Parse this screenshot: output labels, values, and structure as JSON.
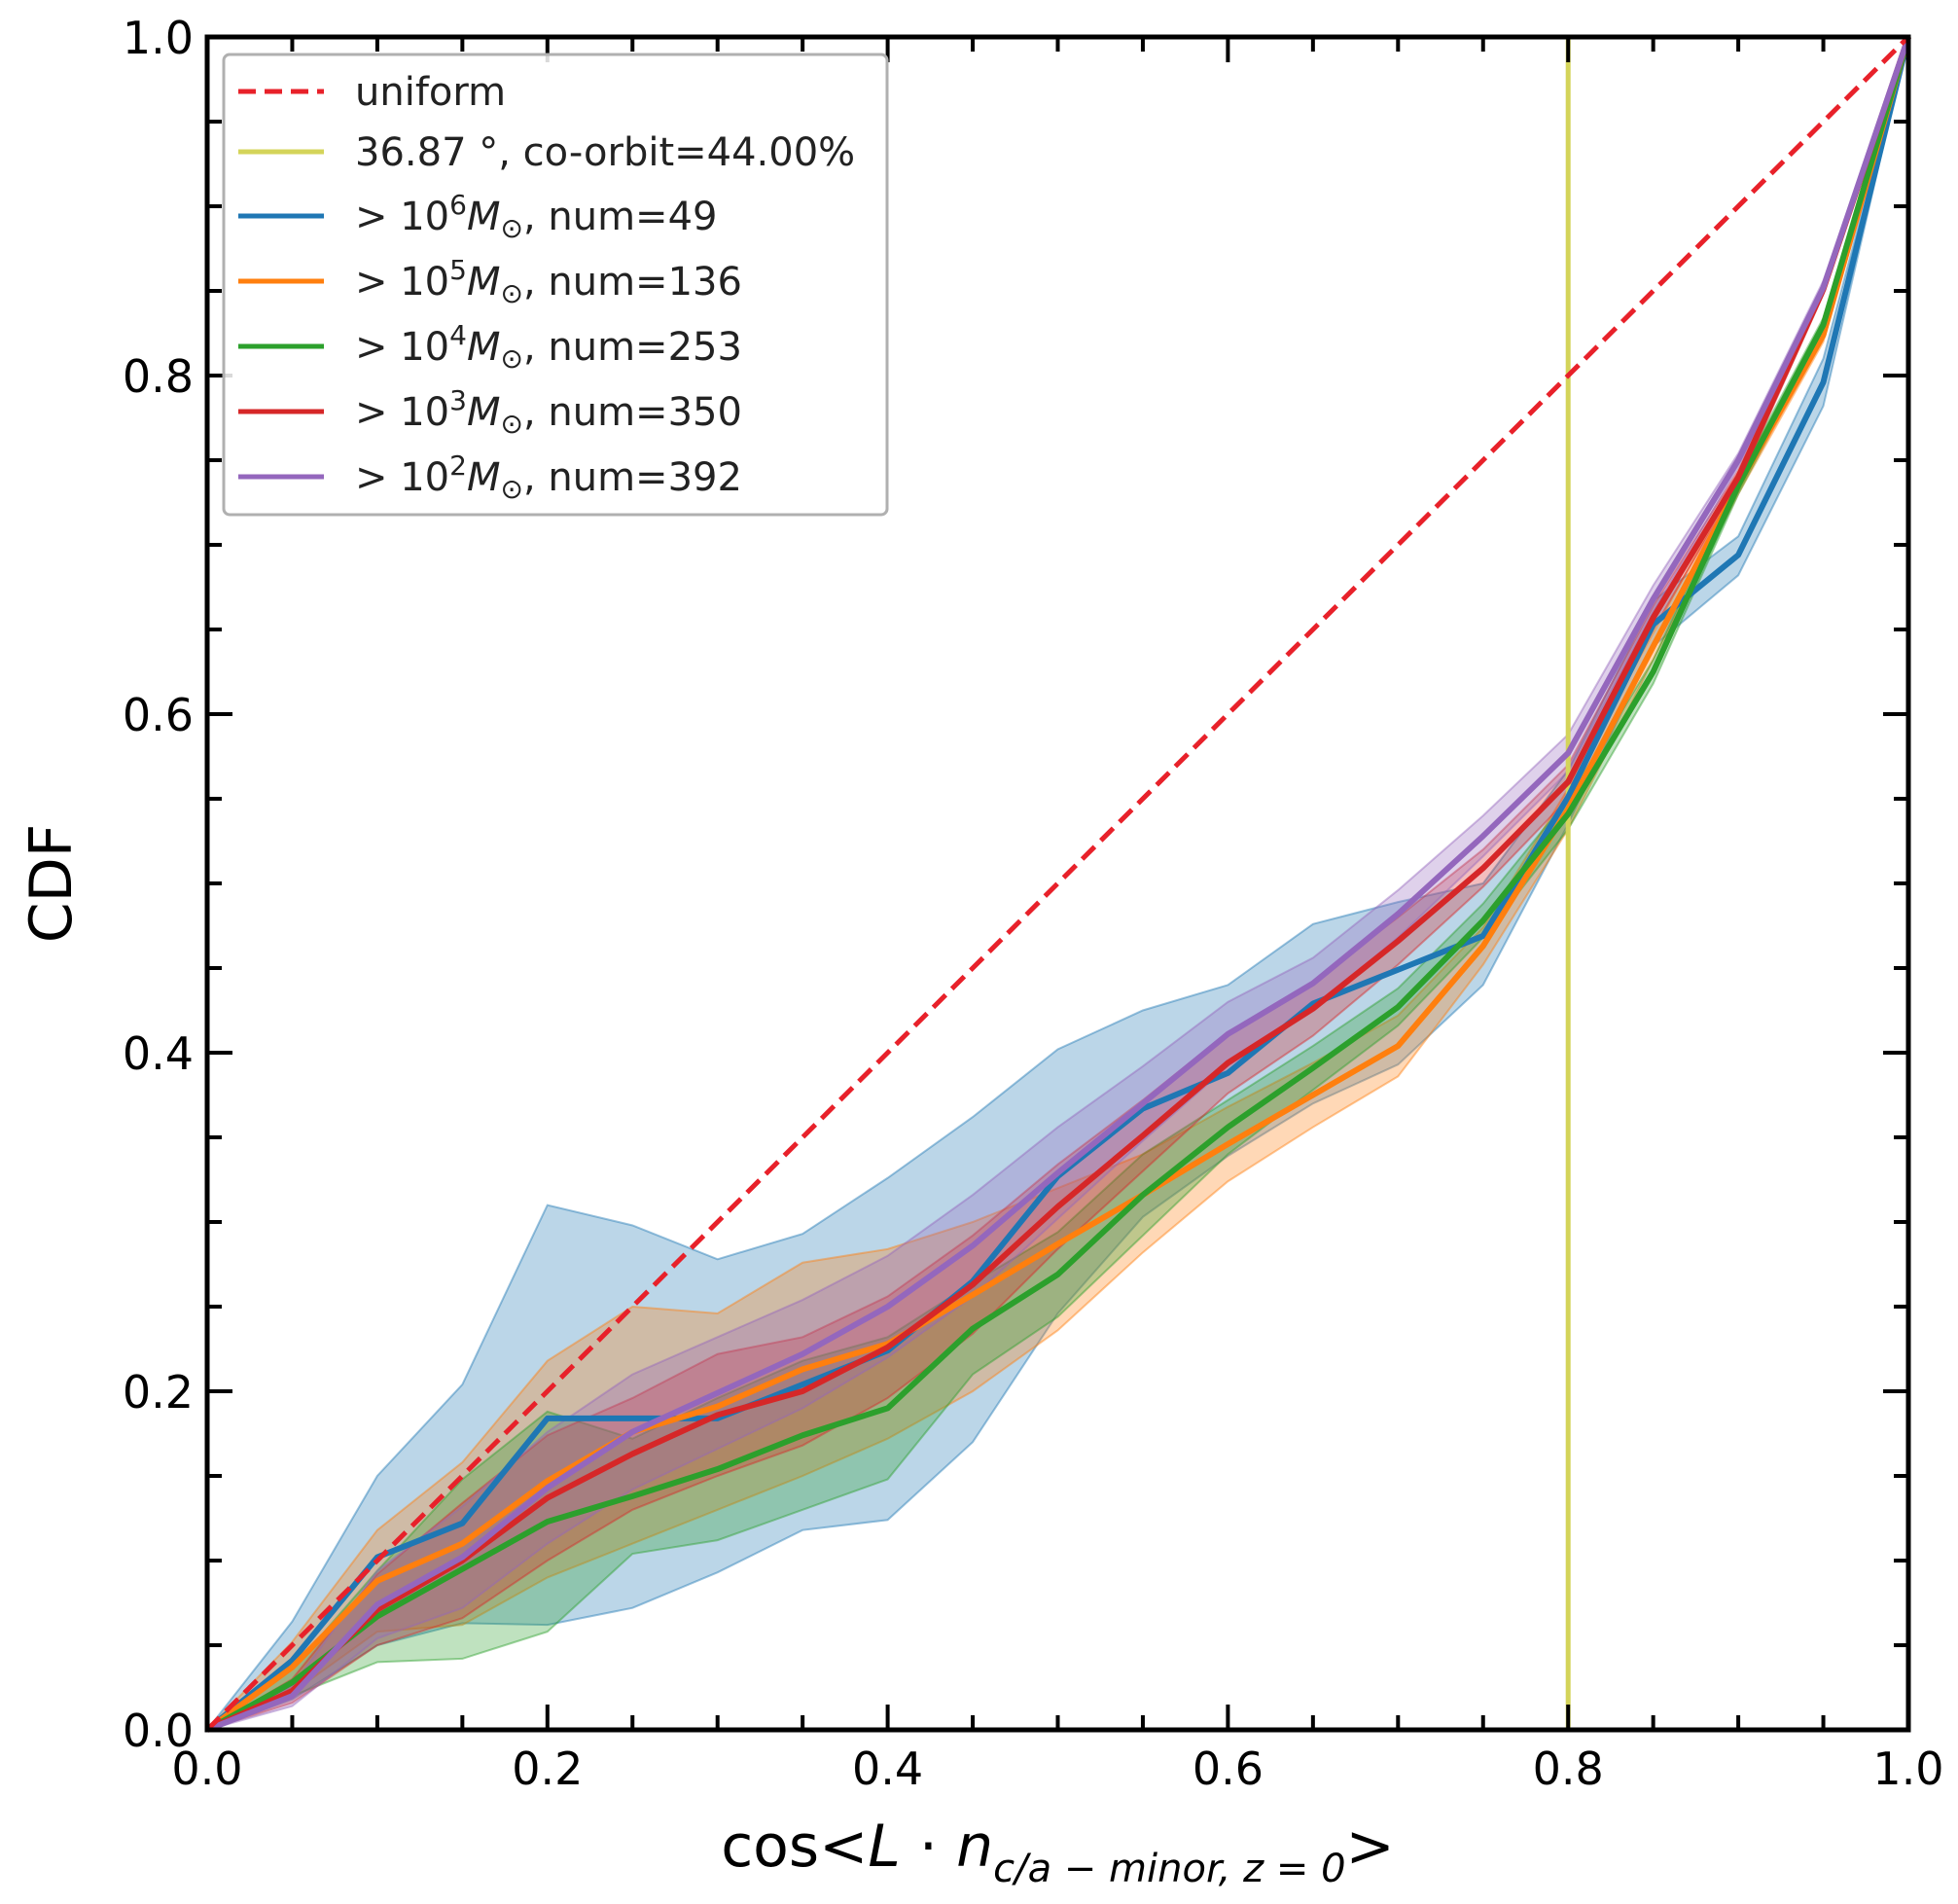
{
  "chart_data": {
    "type": "line",
    "xlabel": "cos<L · n_{c/a − minor, z = 0}>",
    "ylabel": "CDF",
    "xlim": [
      0.0,
      1.0
    ],
    "ylim": [
      0.0,
      1.0
    ],
    "xticks": [
      "0.0",
      "0.2",
      "0.4",
      "0.6",
      "0.8",
      "1.0"
    ],
    "yticks": [
      "0.0",
      "0.2",
      "0.4",
      "0.6",
      "0.8",
      "1.0"
    ],
    "grid": false,
    "legend_position": "top-left",
    "vline": {
      "x": 0.8,
      "color": "#d4d45a",
      "label": "36.87 °, co-orbit=44.00%"
    },
    "reference": {
      "name": "uniform",
      "color": "#e8212a",
      "style": "dashed",
      "x": [
        0.0,
        1.0
      ],
      "y": [
        0.0,
        1.0
      ]
    },
    "x": [
      0.0,
      0.05,
      0.1,
      0.15,
      0.2,
      0.25,
      0.3,
      0.35,
      0.4,
      0.45,
      0.5,
      0.55,
      0.6,
      0.65,
      0.7,
      0.75,
      0.8,
      0.85,
      0.9,
      0.95,
      1.0
    ],
    "series": [
      {
        "name": "> 10^6 M⊙, num=49",
        "exp": "6",
        "tail": ", num=49",
        "color": "#1f77b4",
        "values": [
          0.0,
          0.041,
          0.102,
          0.122,
          0.184,
          0.184,
          0.184,
          0.204,
          0.224,
          0.265,
          0.327,
          0.367,
          0.388,
          0.429,
          0.449,
          0.469,
          0.551,
          0.653,
          0.694,
          0.796,
          1.0
        ],
        "lower": [
          0.0,
          0.018,
          0.05,
          0.063,
          0.062,
          0.072,
          0.093,
          0.118,
          0.124,
          0.17,
          0.246,
          0.303,
          0.339,
          0.37,
          0.393,
          0.44,
          0.535,
          0.64,
          0.682,
          0.782,
          1.0
        ],
        "upper": [
          0.0,
          0.064,
          0.15,
          0.204,
          0.31,
          0.298,
          0.278,
          0.293,
          0.326,
          0.362,
          0.402,
          0.425,
          0.44,
          0.476,
          0.489,
          0.5,
          0.567,
          0.667,
          0.705,
          0.81,
          1.0
        ]
      },
      {
        "name": "> 10^5 M⊙, num=136",
        "exp": "5",
        "tail": ", num=136",
        "color": "#ff7f0e",
        "values": [
          0.0,
          0.037,
          0.088,
          0.11,
          0.147,
          0.176,
          0.191,
          0.213,
          0.228,
          0.257,
          0.287,
          0.316,
          0.346,
          0.375,
          0.404,
          0.463,
          0.544,
          0.64,
          0.735,
          0.824,
          1.0
        ],
        "lower": [
          0.0,
          0.022,
          0.058,
          0.062,
          0.09,
          0.11,
          0.13,
          0.15,
          0.172,
          0.2,
          0.236,
          0.282,
          0.324,
          0.356,
          0.386,
          0.452,
          0.532,
          0.632,
          0.73,
          0.82,
          1.0
        ],
        "upper": [
          0.0,
          0.052,
          0.118,
          0.158,
          0.218,
          0.25,
          0.246,
          0.276,
          0.284,
          0.3,
          0.32,
          0.34,
          0.368,
          0.394,
          0.422,
          0.474,
          0.556,
          0.648,
          0.74,
          0.828,
          1.0
        ]
      },
      {
        "name": "> 10^4 M⊙, num=253",
        "exp": "4",
        "tail": ", num=253",
        "color": "#2ca02c",
        "values": [
          0.0,
          0.028,
          0.067,
          0.095,
          0.123,
          0.138,
          0.154,
          0.174,
          0.19,
          0.237,
          0.269,
          0.316,
          0.356,
          0.391,
          0.427,
          0.478,
          0.541,
          0.625,
          0.735,
          0.83,
          1.0
        ],
        "lower": [
          0.0,
          0.02,
          0.04,
          0.042,
          0.058,
          0.104,
          0.112,
          0.13,
          0.148,
          0.21,
          0.244,
          0.292,
          0.34,
          0.378,
          0.416,
          0.468,
          0.532,
          0.618,
          0.73,
          0.826,
          1.0
        ],
        "upper": [
          0.0,
          0.036,
          0.094,
          0.148,
          0.188,
          0.172,
          0.196,
          0.218,
          0.232,
          0.264,
          0.294,
          0.34,
          0.372,
          0.404,
          0.438,
          0.488,
          0.55,
          0.632,
          0.74,
          0.834,
          1.0
        ]
      },
      {
        "name": "> 10^3 M⊙, num=350",
        "exp": "3",
        "tail": ", num=350",
        "color": "#d62728",
        "values": [
          0.0,
          0.023,
          0.071,
          0.1,
          0.137,
          0.163,
          0.186,
          0.2,
          0.226,
          0.263,
          0.309,
          0.351,
          0.394,
          0.426,
          0.466,
          0.509,
          0.56,
          0.657,
          0.74,
          0.851,
          1.0
        ],
        "lower": [
          0.0,
          0.016,
          0.05,
          0.066,
          0.1,
          0.13,
          0.15,
          0.168,
          0.196,
          0.234,
          0.284,
          0.33,
          0.376,
          0.41,
          0.452,
          0.498,
          0.55,
          0.65,
          0.736,
          0.848,
          1.0
        ],
        "upper": [
          0.0,
          0.03,
          0.092,
          0.134,
          0.174,
          0.196,
          0.222,
          0.232,
          0.256,
          0.292,
          0.334,
          0.372,
          0.412,
          0.442,
          0.48,
          0.52,
          0.57,
          0.664,
          0.744,
          0.854,
          1.0
        ]
      },
      {
        "name": "> 10^2 M⊙, num=392",
        "exp": "2",
        "tail": ", num=392",
        "color": "#9467bd",
        "values": [
          0.0,
          0.02,
          0.074,
          0.102,
          0.143,
          0.176,
          0.199,
          0.222,
          0.25,
          0.286,
          0.329,
          0.37,
          0.411,
          0.441,
          0.482,
          0.528,
          0.577,
          0.668,
          0.75,
          0.852,
          1.0
        ],
        "lower": [
          0.0,
          0.014,
          0.054,
          0.072,
          0.11,
          0.142,
          0.166,
          0.19,
          0.22,
          0.256,
          0.302,
          0.348,
          0.392,
          0.426,
          0.468,
          0.516,
          0.566,
          0.66,
          0.746,
          0.848,
          1.0
        ],
        "upper": [
          0.0,
          0.026,
          0.094,
          0.132,
          0.176,
          0.21,
          0.232,
          0.254,
          0.28,
          0.316,
          0.356,
          0.392,
          0.43,
          0.456,
          0.496,
          0.54,
          0.588,
          0.676,
          0.754,
          0.856,
          1.0
        ]
      }
    ]
  }
}
